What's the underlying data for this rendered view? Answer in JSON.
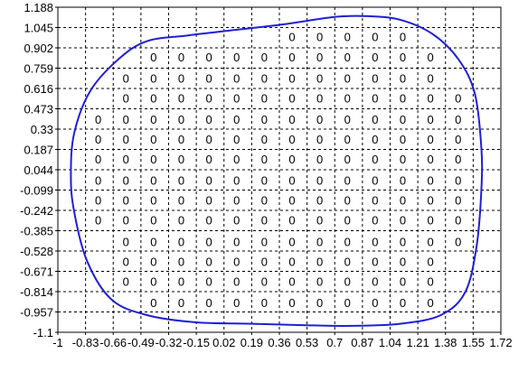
{
  "chart_data": {
    "type": "scatter",
    "title": "",
    "xlabel": "",
    "ylabel": "",
    "xlim": [
      -1,
      1.72
    ],
    "ylim": [
      -1.1,
      1.188
    ],
    "grid": true,
    "x_ticks": [
      "-1",
      "-0.83",
      "-0.66",
      "-0.49",
      "-0.32",
      "-0.15",
      "0.02",
      "0.19",
      "0.36",
      "0.53",
      "0.7",
      "0.87",
      "1.04",
      "1.21",
      "1.38",
      "1.55",
      "1.72"
    ],
    "y_ticks": [
      "1.188",
      "1.045",
      "0.902",
      "0.759",
      "0.616",
      "0.473",
      "0.33",
      "0.187",
      "0.044",
      "-0.099",
      "-0.242",
      "-0.385",
      "-0.528",
      "-0.671",
      "-0.814",
      "-0.957",
      "-1.1"
    ],
    "point_label": "0",
    "series": [
      {
        "kind": "boundary",
        "color": "#1f1fd6",
        "points": [
          [
            -0.62,
            0.83
          ],
          [
            -0.45,
            0.95
          ],
          [
            -0.2,
            0.99
          ],
          [
            0.1,
            1.03
          ],
          [
            0.4,
            1.07
          ],
          [
            0.7,
            1.12
          ],
          [
            0.9,
            1.125
          ],
          [
            1.1,
            1.1
          ],
          [
            1.3,
            1.0
          ],
          [
            1.46,
            0.82
          ],
          [
            1.56,
            0.58
          ],
          [
            1.6,
            0.2
          ],
          [
            1.6,
            -0.1
          ],
          [
            1.57,
            -0.5
          ],
          [
            1.5,
            -0.82
          ],
          [
            1.35,
            -0.98
          ],
          [
            1.1,
            -1.04
          ],
          [
            0.8,
            -1.055
          ],
          [
            0.5,
            -1.05
          ],
          [
            0.2,
            -1.04
          ],
          [
            -0.15,
            -1.03
          ],
          [
            -0.45,
            -0.98
          ],
          [
            -0.67,
            -0.87
          ],
          [
            -0.82,
            -0.6
          ],
          [
            -0.9,
            -0.25
          ],
          [
            -0.92,
            0.0
          ],
          [
            -0.9,
            0.3
          ],
          [
            -0.8,
            0.6
          ],
          [
            -0.62,
            0.83
          ]
        ]
      },
      {
        "kind": "labelled-points",
        "label": "0",
        "rows": [
          {
            "y": 0.98,
            "x": [
              0.36,
              0.53,
              0.7,
              0.87,
              1.04
            ]
          },
          {
            "y": 0.84,
            "x": [
              -0.49,
              -0.32,
              -0.15,
              0.02,
              0.19,
              0.36,
              0.53,
              0.7,
              0.87,
              1.04,
              1.21
            ]
          },
          {
            "y": 0.69,
            "x": [
              -0.66,
              -0.49,
              -0.32,
              -0.15,
              0.02,
              0.19,
              0.36,
              0.53,
              0.7,
              0.87,
              1.04,
              1.21
            ]
          },
          {
            "y": 0.55,
            "x": [
              -0.66,
              -0.49,
              -0.32,
              -0.15,
              0.02,
              0.19,
              0.36,
              0.53,
              0.7,
              0.87,
              1.04,
              1.21,
              1.38
            ]
          },
          {
            "y": 0.4,
            "x": [
              -0.83,
              -0.66,
              -0.49,
              -0.32,
              -0.15,
              0.02,
              0.19,
              0.36,
              0.53,
              0.7,
              0.87,
              1.04,
              1.21,
              1.38
            ]
          },
          {
            "y": 0.26,
            "x": [
              -0.83,
              -0.66,
              -0.49,
              -0.32,
              -0.15,
              0.02,
              0.19,
              0.36,
              0.53,
              0.7,
              0.87,
              1.04,
              1.21,
              1.38
            ]
          },
          {
            "y": 0.12,
            "x": [
              -0.83,
              -0.66,
              -0.49,
              -0.32,
              -0.15,
              0.02,
              0.19,
              0.36,
              0.53,
              0.7,
              0.87,
              1.04,
              1.21,
              1.38
            ]
          },
          {
            "y": -0.03,
            "x": [
              -0.83,
              -0.66,
              -0.49,
              -0.32,
              -0.15,
              0.02,
              0.19,
              0.36,
              0.53,
              0.7,
              0.87,
              1.04,
              1.21,
              1.38
            ]
          },
          {
            "y": -0.17,
            "x": [
              -0.83,
              -0.66,
              -0.49,
              -0.32,
              -0.15,
              0.02,
              0.19,
              0.36,
              0.53,
              0.7,
              0.87,
              1.04,
              1.21,
              1.38
            ]
          },
          {
            "y": -0.31,
            "x": [
              -0.83,
              -0.66,
              -0.49,
              -0.32,
              -0.15,
              0.02,
              0.19,
              0.36,
              0.53,
              0.7,
              0.87,
              1.04,
              1.21,
              1.38
            ]
          },
          {
            "y": -0.46,
            "x": [
              -0.66,
              -0.49,
              -0.32,
              -0.15,
              0.02,
              0.19,
              0.36,
              0.53,
              0.7,
              0.87,
              1.04,
              1.21,
              1.38
            ]
          },
          {
            "y": -0.6,
            "x": [
              -0.66,
              -0.49,
              -0.32,
              -0.15,
              0.02,
              0.19,
              0.36,
              0.53,
              0.7,
              0.87,
              1.04,
              1.21
            ]
          },
          {
            "y": -0.74,
            "x": [
              -0.66,
              -0.49,
              -0.32,
              -0.15,
              0.02,
              0.19,
              0.36,
              0.53,
              0.7,
              0.87,
              1.04,
              1.21
            ]
          },
          {
            "y": -0.89,
            "x": [
              -0.49,
              -0.32,
              -0.15,
              0.02,
              0.19,
              0.36,
              0.53,
              0.7,
              0.87,
              1.04,
              1.21
            ]
          }
        ]
      }
    ],
    "colors": {
      "boundary": "#1f1fd6",
      "grid": "#000000",
      "axes": "#000000"
    }
  }
}
